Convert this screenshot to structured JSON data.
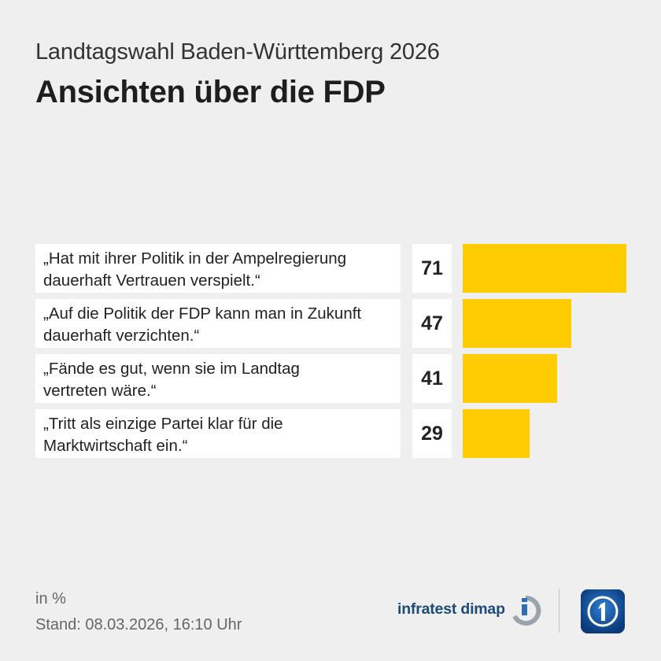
{
  "header": {
    "supertitle": "Landtagswahl Baden-Württemberg 2026",
    "title": "Ansichten über die FDP"
  },
  "chart_data": {
    "type": "bar",
    "orientation": "horizontal",
    "categories": [
      "„Hat mit ihrer Politik in der Ampelregierung dauerhaft Vertrauen verspielt.“",
      "„Auf die Politik der FDP kann man in Zukunft dauerhaft verzichten.“",
      "„Fände es gut, wenn sie im Landtag vertreten wäre.“",
      "„Tritt als einzige Partei klar für die Marktwirtschaft ein.“"
    ],
    "label_lines": [
      [
        "„Hat mit ihrer Politik in der Ampelregierung",
        "dauerhaft Vertrauen verspielt.“"
      ],
      [
        "„Auf die Politik der FDP kann man in Zukunft",
        "dauerhaft verzichten.“"
      ],
      [
        "„Fände es gut, wenn sie im Landtag",
        "vertreten wäre.“"
      ],
      [
        "„Tritt als einzige Partei klar für die",
        "Marktwirtschaft ein.“"
      ]
    ],
    "values": [
      71,
      47,
      41,
      29
    ],
    "bar_color": "#fecc00",
    "unit": "%"
  },
  "footer": {
    "unit_label": "in %",
    "stand_label": "Stand:  08.03.2026, 16:10 Uhr",
    "source": "infratest dimap"
  },
  "logos": {
    "infratest_icon": "infratest-dimap-logo-icon",
    "broadcaster_icon": "ard-tagesschau-logo-icon"
  }
}
